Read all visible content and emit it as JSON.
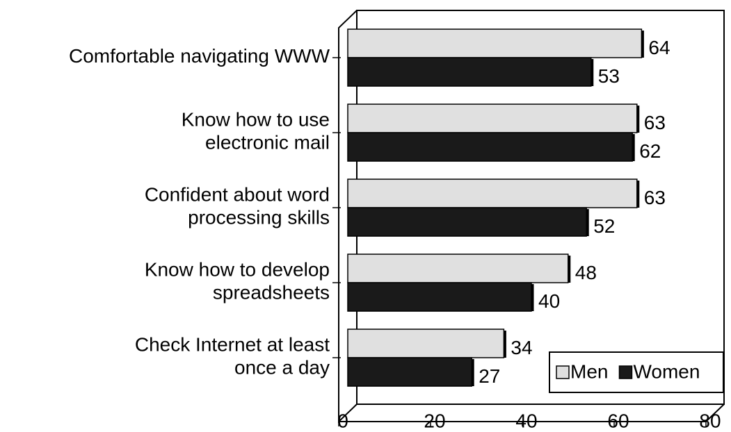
{
  "chart_data": {
    "type": "bar",
    "orientation": "horizontal",
    "categories": [
      "Comfortable navigating WWW",
      "Know how to use\nelectronic mail",
      "Confident about word\nprocessing skills",
      "Know how to develop\nspreadsheets",
      "Check Internet at least\nonce a day"
    ],
    "series": [
      {
        "name": "Men",
        "color": "#e0e0e0",
        "values": [
          64,
          63,
          63,
          48,
          34
        ]
      },
      {
        "name": "Women",
        "color": "#1a1a1a",
        "values": [
          53,
          62,
          52,
          40,
          27
        ]
      }
    ],
    "xlim": [
      0,
      80
    ],
    "xticks": [
      0,
      20,
      40,
      60,
      80
    ],
    "legend": "lower right",
    "grid": false
  }
}
